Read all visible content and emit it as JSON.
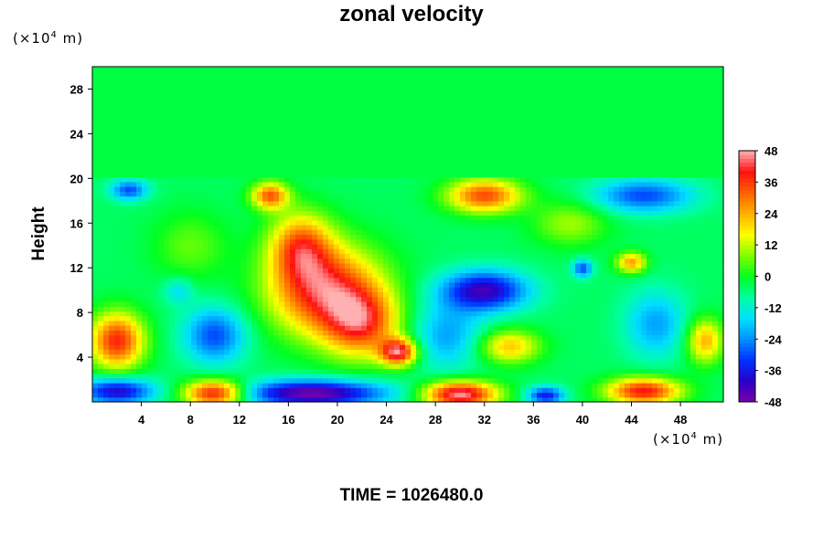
{
  "chart_data": {
    "type": "heatmap",
    "title": "zonal velocity",
    "xlabel": "",
    "ylabel": "Height",
    "x_unit": {
      "prefix": "(×10",
      "exp": "4",
      "suffix": " m)"
    },
    "y_unit": {
      "prefix": "(×10",
      "exp": "4",
      "suffix": " m)"
    },
    "xlim": [
      0,
      51.5
    ],
    "ylim": [
      0,
      30
    ],
    "x_ticks": [
      4,
      8,
      12,
      16,
      20,
      24,
      28,
      32,
      36,
      40,
      44,
      48
    ],
    "y_ticks": [
      4,
      8,
      12,
      16,
      20,
      24,
      28
    ],
    "colorbar": {
      "min": -48,
      "max": 48,
      "ticks": [
        48,
        36,
        24,
        12,
        0,
        -12,
        -24,
        -36,
        -48
      ],
      "stops": [
        {
          "v": -48,
          "color": "#7a00a8"
        },
        {
          "v": -40,
          "color": "#2a00c8"
        },
        {
          "v": -32,
          "color": "#0030ff"
        },
        {
          "v": -24,
          "color": "#0090ff"
        },
        {
          "v": -16,
          "color": "#00e0ff"
        },
        {
          "v": -8,
          "color": "#00ffa0"
        },
        {
          "v": 0,
          "color": "#00ff20"
        },
        {
          "v": 8,
          "color": "#80ff00"
        },
        {
          "v": 16,
          "color": "#ffff00"
        },
        {
          "v": 24,
          "color": "#ffb000"
        },
        {
          "v": 32,
          "color": "#ff6000"
        },
        {
          "v": 40,
          "color": "#ff1010"
        },
        {
          "v": 48,
          "color": "#ffb0b0"
        }
      ]
    },
    "field": {
      "background": -4,
      "top_layer_value": -2,
      "tropopause_height": 20,
      "features": [
        {
          "x": 19,
          "y": 10,
          "rx": 4.5,
          "ry": 4.0,
          "v": 40
        },
        {
          "x": 22,
          "y": 7,
          "rx": 3.0,
          "ry": 3.0,
          "v": 30
        },
        {
          "x": 25,
          "y": 4.5,
          "rx": 1.5,
          "ry": 1.2,
          "v": 42
        },
        {
          "x": 17,
          "y": 14,
          "rx": 2.5,
          "ry": 3.0,
          "v": 28
        },
        {
          "x": 2,
          "y": 5.5,
          "rx": 2.2,
          "ry": 2.5,
          "v": 38
        },
        {
          "x": 50,
          "y": 5.5,
          "rx": 1.5,
          "ry": 2.0,
          "v": 24
        },
        {
          "x": 32,
          "y": 18.5,
          "rx": 3.0,
          "ry": 1.5,
          "v": 34
        },
        {
          "x": 14.5,
          "y": 18.5,
          "rx": 1.5,
          "ry": 1.2,
          "v": 32
        },
        {
          "x": 44,
          "y": 12.5,
          "rx": 1.2,
          "ry": 0.9,
          "v": 26
        },
        {
          "x": 34,
          "y": 5,
          "rx": 2.5,
          "ry": 1.5,
          "v": 22
        },
        {
          "x": 10,
          "y": 6,
          "rx": 2.5,
          "ry": 2.5,
          "v": -30
        },
        {
          "x": 32,
          "y": 10,
          "rx": 3.5,
          "ry": 1.8,
          "v": -42
        },
        {
          "x": 29,
          "y": 6,
          "rx": 3.0,
          "ry": 3.0,
          "v": -22
        },
        {
          "x": 45,
          "y": 18.5,
          "rx": 4.0,
          "ry": 1.5,
          "v": -30
        },
        {
          "x": 3,
          "y": 19,
          "rx": 1.5,
          "ry": 0.9,
          "v": -30
        },
        {
          "x": 46,
          "y": 7,
          "rx": 2.5,
          "ry": 3.0,
          "v": -22
        },
        {
          "x": 40,
          "y": 12,
          "rx": 0.8,
          "ry": 0.8,
          "v": -30
        },
        {
          "x": 7,
          "y": 10,
          "rx": 1.2,
          "ry": 1.2,
          "v": -16
        },
        {
          "x": 2,
          "y": 1,
          "rx": 3.0,
          "ry": 1.2,
          "v": -40
        },
        {
          "x": 18,
          "y": 0.8,
          "rx": 6.0,
          "ry": 1.2,
          "v": -48
        },
        {
          "x": 10,
          "y": 0.8,
          "rx": 2.5,
          "ry": 1.2,
          "v": 44
        },
        {
          "x": 30,
          "y": 0.7,
          "rx": 3.0,
          "ry": 1.2,
          "v": 48
        },
        {
          "x": 45,
          "y": 1,
          "rx": 3.0,
          "ry": 1.2,
          "v": 40
        },
        {
          "x": 37,
          "y": 0.6,
          "rx": 1.5,
          "ry": 0.8,
          "v": -36
        },
        {
          "x": 39,
          "y": 16,
          "rx": 3.0,
          "ry": 2.0,
          "v": 10
        },
        {
          "x": 8,
          "y": 14,
          "rx": 3.0,
          "ry": 3.0,
          "v": 6
        }
      ]
    }
  },
  "time_label": "TIME = 1026480.0"
}
